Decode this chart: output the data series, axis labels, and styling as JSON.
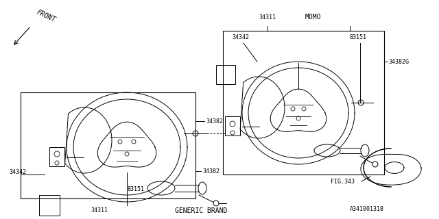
{
  "bg_color": "#ffffff",
  "line_color": "#000000",
  "fig_w": 6.4,
  "fig_h": 3.2,
  "dpi": 100,
  "labels": {
    "front": "FRONT",
    "34311_left": "34311",
    "generic_brand": "GENERIC BRAND",
    "34342_left": "34342",
    "83151_left": "83151",
    "34382_upper": "34382",
    "34382_lower": "34382",
    "34311_right": "34311",
    "MOMO": "MOMO",
    "34342_right": "34342",
    "83151_right": "83151",
    "34382G": "34382G",
    "FIG343": "FIG.343",
    "part_num": "A341001318"
  },
  "font_size": 6.0,
  "font_size_momo": 6.5
}
